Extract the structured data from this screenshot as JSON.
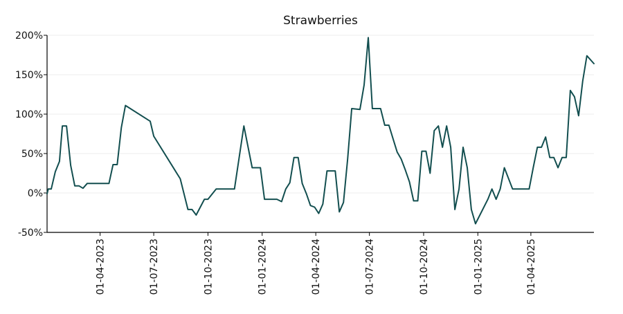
{
  "chart_data": {
    "type": "line",
    "title": "Strawberries",
    "xlabel": "",
    "ylabel": "",
    "x_range": [
      "2023-01-01",
      "2025-07-17"
    ],
    "ylim": [
      -50,
      200
    ],
    "y_ticks": [
      {
        "value": 200,
        "label": "200%"
      },
      {
        "value": 150,
        "label": "150%"
      },
      {
        "value": 100,
        "label": "100%"
      },
      {
        "value": 50,
        "label": "50%"
      },
      {
        "value": 0,
        "label": "0%"
      },
      {
        "value": -50,
        "label": "-50%"
      }
    ],
    "x_ticks": [
      {
        "date": "2023-04-01",
        "label": "01-04-2023"
      },
      {
        "date": "2023-07-01",
        "label": "01-07-2023"
      },
      {
        "date": "2023-10-01",
        "label": "01-10-2023"
      },
      {
        "date": "2024-01-01",
        "label": "01-01-2024"
      },
      {
        "date": "2024-04-01",
        "label": "01-04-2024"
      },
      {
        "date": "2024-07-01",
        "label": "01-07-2024"
      },
      {
        "date": "2024-10-01",
        "label": "01-10-2024"
      },
      {
        "date": "2025-01-01",
        "label": "01-01-2025"
      },
      {
        "date": "2025-04-01",
        "label": "01-04-2025"
      }
    ],
    "grid": "horizontal",
    "line_color": "#124e4f",
    "series": [
      {
        "points": [
          [
            "2023-01-01",
            -1
          ],
          [
            "2023-01-03",
            5
          ],
          [
            "2023-01-08",
            5
          ],
          [
            "2023-01-15",
            27
          ],
          [
            "2023-01-22",
            40
          ],
          [
            "2023-01-27",
            85
          ],
          [
            "2023-02-03",
            85
          ],
          [
            "2023-02-10",
            35
          ],
          [
            "2023-02-17",
            9
          ],
          [
            "2023-02-24",
            9
          ],
          [
            "2023-03-03",
            6
          ],
          [
            "2023-03-10",
            12
          ],
          [
            "2023-03-17",
            12
          ],
          [
            "2023-04-01",
            12
          ],
          [
            "2023-04-09",
            12
          ],
          [
            "2023-04-16",
            12
          ],
          [
            "2023-04-23",
            36
          ],
          [
            "2023-04-30",
            36
          ],
          [
            "2023-05-07",
            83
          ],
          [
            "2023-05-14",
            111
          ],
          [
            "2023-06-25",
            91
          ],
          [
            "2023-07-01",
            72
          ],
          [
            "2023-08-15",
            18
          ],
          [
            "2023-08-28",
            -21
          ],
          [
            "2023-09-04",
            -21
          ],
          [
            "2023-09-11",
            -28
          ],
          [
            "2023-09-25",
            -8
          ],
          [
            "2023-10-01",
            -8
          ],
          [
            "2023-10-15",
            5
          ],
          [
            "2023-11-15",
            5
          ],
          [
            "2023-12-01",
            85
          ],
          [
            "2023-12-15",
            32
          ],
          [
            "2023-12-29",
            32
          ],
          [
            "2024-01-05",
            -8
          ],
          [
            "2024-01-26",
            -8
          ],
          [
            "2024-02-03",
            -11
          ],
          [
            "2024-02-10",
            5
          ],
          [
            "2024-02-17",
            13
          ],
          [
            "2024-02-24",
            45
          ],
          [
            "2024-03-02",
            45
          ],
          [
            "2024-03-09",
            12
          ],
          [
            "2024-03-16",
            -1
          ],
          [
            "2024-03-23",
            -16
          ],
          [
            "2024-03-30",
            -18
          ],
          [
            "2024-04-06",
            -26
          ],
          [
            "2024-04-13",
            -14
          ],
          [
            "2024-04-20",
            28
          ],
          [
            "2024-05-04",
            28
          ],
          [
            "2024-05-11",
            -24
          ],
          [
            "2024-05-18",
            -12
          ],
          [
            "2024-05-25",
            43
          ],
          [
            "2024-06-01",
            107
          ],
          [
            "2024-06-15",
            106
          ],
          [
            "2024-06-22",
            137
          ],
          [
            "2024-06-29",
            197
          ],
          [
            "2024-07-06",
            107
          ],
          [
            "2024-07-20",
            107
          ],
          [
            "2024-07-27",
            86
          ],
          [
            "2024-08-03",
            86
          ],
          [
            "2024-08-10",
            69
          ],
          [
            "2024-08-17",
            52
          ],
          [
            "2024-08-24",
            43
          ],
          [
            "2024-08-31",
            29
          ],
          [
            "2024-09-07",
            14
          ],
          [
            "2024-09-14",
            -10
          ],
          [
            "2024-09-21",
            -10
          ],
          [
            "2024-09-28",
            53
          ],
          [
            "2024-10-05",
            53
          ],
          [
            "2024-10-12",
            25
          ],
          [
            "2024-10-19",
            79
          ],
          [
            "2024-10-26",
            85
          ],
          [
            "2024-11-02",
            58
          ],
          [
            "2024-11-09",
            85
          ],
          [
            "2024-11-16",
            58
          ],
          [
            "2024-11-23",
            -21
          ],
          [
            "2024-11-30",
            5
          ],
          [
            "2024-12-07",
            58
          ],
          [
            "2024-12-14",
            32
          ],
          [
            "2024-12-21",
            -21
          ],
          [
            "2024-12-28",
            -39
          ],
          [
            "2025-01-18",
            -8
          ],
          [
            "2025-01-25",
            5
          ],
          [
            "2025-02-01",
            -8
          ],
          [
            "2025-02-08",
            5
          ],
          [
            "2025-02-15",
            32
          ],
          [
            "2025-03-01",
            5
          ],
          [
            "2025-03-29",
            5
          ],
          [
            "2025-04-05",
            32
          ],
          [
            "2025-04-12",
            58
          ],
          [
            "2025-04-19",
            58
          ],
          [
            "2025-04-26",
            71
          ],
          [
            "2025-05-03",
            45
          ],
          [
            "2025-05-10",
            45
          ],
          [
            "2025-05-17",
            32
          ],
          [
            "2025-05-24",
            45
          ],
          [
            "2025-05-31",
            45
          ],
          [
            "2025-06-07",
            130
          ],
          [
            "2025-06-14",
            122
          ],
          [
            "2025-06-21",
            98
          ],
          [
            "2025-06-28",
            142
          ],
          [
            "2025-07-05",
            174
          ],
          [
            "2025-07-17",
            164
          ]
        ]
      }
    ]
  }
}
